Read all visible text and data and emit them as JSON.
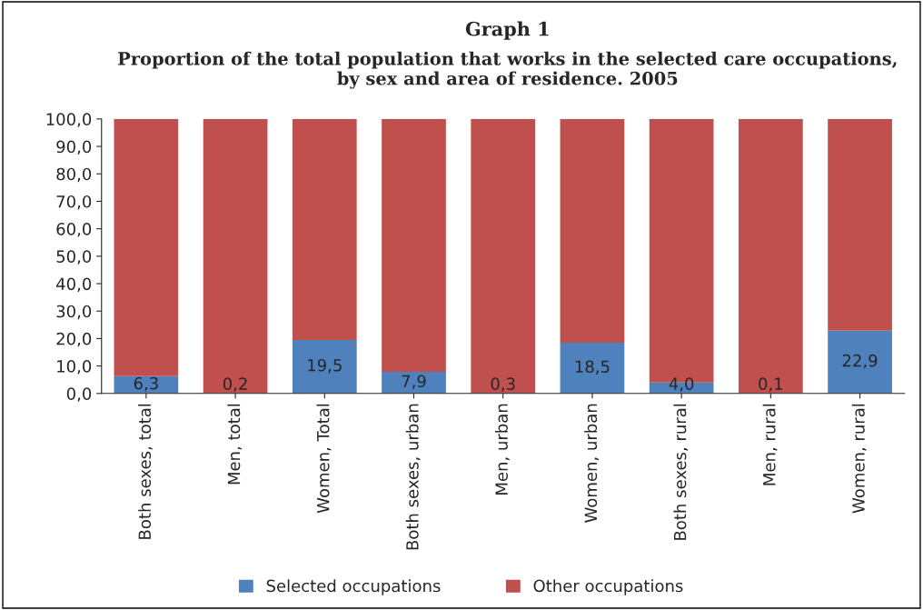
{
  "chart_data": {
    "type": "bar",
    "stacked": true,
    "title": "Graph 1",
    "subtitle": "Proportion of the total population that works in the selected care occupations, by sex and area of residence. 2005",
    "categories": [
      "Both sexes, total",
      "Men, total",
      "Women, Total",
      "Both sexes, urban",
      "Men, urban",
      "Women, urban",
      "Both sexes, rural",
      "Men, rural",
      "Women, rural"
    ],
    "series": [
      {
        "name": "Selected occupations",
        "color": "#4f81bd",
        "values": [
          6.3,
          0.2,
          19.5,
          7.9,
          0.3,
          18.5,
          4.0,
          0.1,
          22.9
        ],
        "value_labels": [
          "6,3",
          "0,2",
          "19,5",
          "7,9",
          "0,3",
          "18,5",
          "4,0",
          "0,1",
          "22,9"
        ]
      },
      {
        "name": "Other occupations",
        "color": "#c0504d",
        "values": [
          93.7,
          99.8,
          80.5,
          92.1,
          99.7,
          81.5,
          96.0,
          99.9,
          77.1
        ]
      }
    ],
    "ylim": [
      0,
      100
    ],
    "yticks": [
      {
        "value": 0,
        "label": "0,0"
      },
      {
        "value": 10,
        "label": "10,0"
      },
      {
        "value": 20,
        "label": "20,0"
      },
      {
        "value": 30,
        "label": "30,0"
      },
      {
        "value": 40,
        "label": "40,0"
      },
      {
        "value": 50,
        "label": "50,0"
      },
      {
        "value": 60,
        "label": "60,0"
      },
      {
        "value": 70,
        "label": "70,0"
      },
      {
        "value": 80,
        "label": "80,0"
      },
      {
        "value": 90,
        "label": "90,0"
      },
      {
        "value": 100,
        "label": "100,0"
      }
    ],
    "legend": "bottom"
  }
}
